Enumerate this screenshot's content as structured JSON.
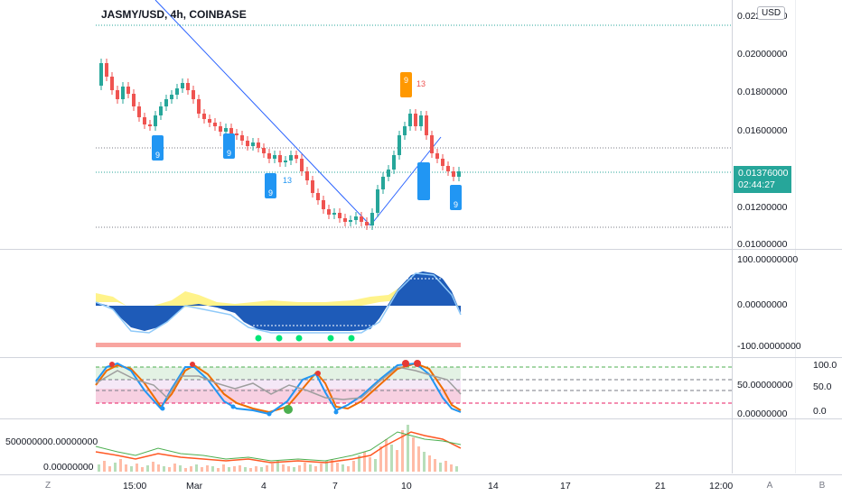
{
  "header": {
    "symbol_title": "JASMY/USD, 4h, COINBASE",
    "currency_badge": "USD"
  },
  "main_pane": {
    "price_labels": [
      "0.02200000",
      "0.02000000",
      "0.01800000",
      "0.01600000",
      "0.01200000",
      "0.01000000"
    ],
    "last_price": "0.01376000",
    "countdown": "02:44:27"
  },
  "oscillator_pane": {
    "labels": [
      "100.00000000",
      "0.00000000",
      "-100.00000000"
    ]
  },
  "stoch_pane": {
    "left_labels": [
      "50.00000000",
      "0.00000000"
    ],
    "right_labels": [
      "100.0",
      "50.0",
      "0.0"
    ]
  },
  "volume_pane": {
    "left_labels": [
      "500000000.00000000",
      "0.00000000"
    ]
  },
  "time_axis": {
    "labels": [
      "15:00",
      "Mar",
      "4",
      "7",
      "10",
      "14",
      "17",
      "21",
      "12:00"
    ],
    "left_button": "Z",
    "right_buttons": [
      "A",
      "B"
    ]
  },
  "signal_labels": {
    "setup_count": "9",
    "countdown_count": "13"
  },
  "colors": {
    "up": "#26a69a",
    "down": "#ef5350",
    "blue_signal": "#2196f3",
    "orange_signal": "#ff9800",
    "price_tag": "#26a69a"
  }
}
